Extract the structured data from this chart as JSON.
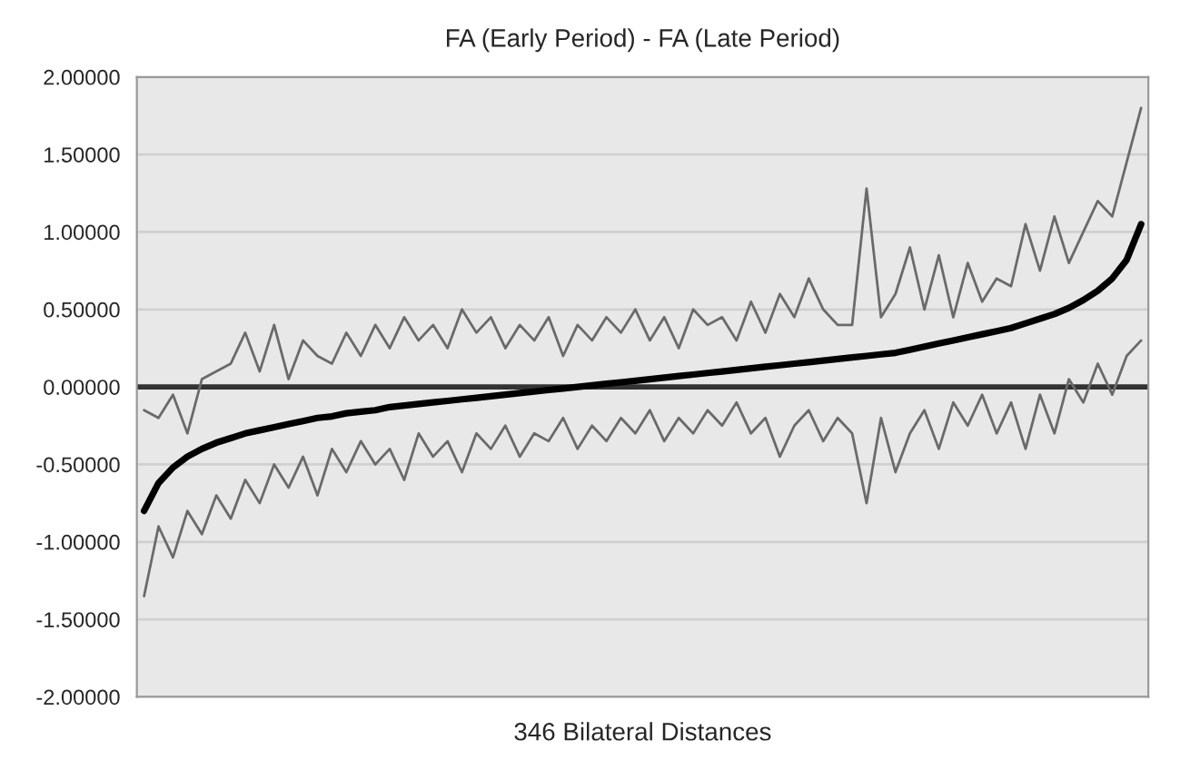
{
  "chart_data": {
    "type": "line",
    "title": "FA (Early Period) - FA (Late Period)",
    "xlabel": "346 Bilateral Distances",
    "categories": [
      null,
      null,
      null,
      null,
      null,
      null,
      null,
      null,
      null,
      null,
      null,
      null,
      null,
      null,
      null,
      null,
      null,
      null,
      null,
      null,
      null,
      null,
      null,
      null,
      null,
      null,
      null,
      null,
      null,
      null,
      null,
      null,
      null,
      null,
      null,
      null,
      null,
      null,
      null,
      null,
      null,
      null,
      null,
      null,
      null,
      null,
      null,
      null,
      null,
      null,
      null,
      null,
      null,
      null,
      null,
      null,
      null,
      null,
      null,
      null,
      null,
      null,
      null,
      null,
      null,
      null,
      null,
      null,
      null,
      null
    ],
    "series": [
      {
        "color": "#6a6a6a",
        "values": [
          -0.15,
          -0.2,
          -0.05,
          -0.3,
          0.05,
          0.1,
          0.15,
          0.35,
          0.1,
          0.4,
          0.05,
          0.3,
          0.2,
          0.15,
          0.35,
          0.2,
          0.4,
          0.25,
          0.45,
          0.3,
          0.4,
          0.25,
          0.5,
          0.35,
          0.45,
          0.25,
          0.4,
          0.3,
          0.45,
          0.2,
          0.4,
          0.3,
          0.45,
          0.35,
          0.5,
          0.3,
          0.45,
          0.25,
          0.5,
          0.4,
          0.45,
          0.3,
          0.55,
          0.35,
          0.6,
          0.45,
          0.7,
          0.5,
          0.4,
          0.4,
          1.28,
          0.45,
          0.6,
          0.9,
          0.5,
          0.85,
          0.45,
          0.8,
          0.55,
          0.7,
          0.65,
          1.05,
          0.75,
          1.1,
          0.8,
          1.0,
          1.2,
          1.1,
          1.45,
          1.8
        ]
      },
      {
        "color": "#6a6a6a",
        "values": [
          -1.35,
          -0.9,
          -1.1,
          -0.8,
          -0.95,
          -0.7,
          -0.85,
          -0.6,
          -0.75,
          -0.5,
          -0.65,
          -0.45,
          -0.7,
          -0.4,
          -0.55,
          -0.35,
          -0.5,
          -0.4,
          -0.6,
          -0.3,
          -0.45,
          -0.35,
          -0.55,
          -0.3,
          -0.4,
          -0.25,
          -0.45,
          -0.3,
          -0.35,
          -0.2,
          -0.4,
          -0.25,
          -0.35,
          -0.2,
          -0.3,
          -0.15,
          -0.35,
          -0.2,
          -0.3,
          -0.15,
          -0.25,
          -0.1,
          -0.3,
          -0.2,
          -0.45,
          -0.25,
          -0.15,
          -0.35,
          -0.2,
          -0.3,
          -0.75,
          -0.2,
          -0.55,
          -0.3,
          -0.15,
          -0.4,
          -0.1,
          -0.25,
          -0.05,
          -0.3,
          -0.1,
          -0.4,
          -0.05,
          -0.3,
          0.05,
          -0.1,
          0.15,
          -0.05,
          0.2,
          0.3
        ]
      },
      {
        "color": "#000000",
        "values": [
          -0.8,
          -0.62,
          -0.52,
          -0.45,
          -0.4,
          -0.36,
          -0.33,
          -0.3,
          -0.28,
          -0.26,
          -0.24,
          -0.22,
          -0.2,
          -0.19,
          -0.17,
          -0.16,
          -0.15,
          -0.13,
          -0.12,
          -0.11,
          -0.1,
          -0.09,
          -0.08,
          -0.07,
          -0.06,
          -0.05,
          -0.04,
          -0.03,
          -0.02,
          -0.01,
          0.0,
          0.01,
          0.02,
          0.03,
          0.04,
          0.05,
          0.06,
          0.07,
          0.08,
          0.09,
          0.1,
          0.11,
          0.12,
          0.13,
          0.14,
          0.15,
          0.16,
          0.17,
          0.18,
          0.19,
          0.2,
          0.21,
          0.22,
          0.24,
          0.26,
          0.28,
          0.3,
          0.32,
          0.34,
          0.36,
          0.38,
          0.41,
          0.44,
          0.47,
          0.51,
          0.56,
          0.62,
          0.7,
          0.82,
          1.05
        ]
      }
    ],
    "ylim": [
      -2,
      2
    ],
    "yticks": [
      {
        "value": 2,
        "label": "2.00000"
      },
      {
        "value": 1.5,
        "label": "1.50000"
      },
      {
        "value": 1,
        "label": "1.00000"
      },
      {
        "value": 0.5,
        "label": "0.50000"
      },
      {
        "value": 0,
        "label": "0.00000"
      },
      {
        "value": -0.5,
        "label": "-0.50000"
      },
      {
        "value": -1,
        "label": "-1.00000"
      },
      {
        "value": -1.5,
        "label": "-1.50000"
      },
      {
        "value": -2,
        "label": "-2.00000"
      }
    ],
    "ref_lines": [
      {
        "axis": "y",
        "value": 0,
        "color": "#333333"
      }
    ],
    "grid": "y",
    "tick_labels": "y",
    "marker": "none",
    "line_style": "solid"
  }
}
